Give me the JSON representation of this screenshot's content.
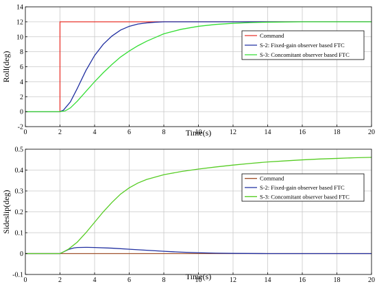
{
  "chart_data": [
    {
      "type": "line",
      "xlabel": "Time(s)",
      "ylabel": "Roll(deg)",
      "xlim": [
        0,
        20
      ],
      "ylim": [
        -2,
        14
      ],
      "xticks": [
        "0",
        "2",
        "4",
        "6",
        "8",
        "10",
        "12",
        "14",
        "16",
        "18",
        "20"
      ],
      "yticks": [
        "-2",
        "0",
        "2",
        "4",
        "6",
        "8",
        "10",
        "12",
        "14"
      ],
      "grid": true,
      "legend_position": "right",
      "series": [
        {
          "name": "Command",
          "color": "#e8332b",
          "x": [
            0,
            2,
            2,
            20
          ],
          "y": [
            0,
            0,
            12,
            12
          ]
        },
        {
          "name": "S-2: Fixed-gain observer based FTC",
          "color": "#1f2ea0",
          "x": [
            0,
            2,
            2.2,
            2.6,
            3,
            3.5,
            4,
            4.5,
            5,
            5.5,
            6,
            6.5,
            7,
            7.5,
            8,
            9,
            10,
            12,
            14,
            16,
            18,
            20
          ],
          "y": [
            0,
            0,
            0.2,
            1.3,
            3.1,
            5.5,
            7.5,
            9.0,
            10.1,
            10.9,
            11.4,
            11.7,
            11.85,
            11.95,
            12.0,
            12.0,
            12.0,
            12.0,
            12.0,
            12.0,
            12.0,
            12.0
          ]
        },
        {
          "name": "S-3: Concomitant observer based FTC",
          "color": "#33dd33",
          "x": [
            0,
            2,
            2.3,
            2.6,
            3,
            3.5,
            4,
            4.5,
            5,
            5.5,
            6,
            6.5,
            7,
            7.5,
            8,
            9,
            10,
            11,
            12,
            13,
            14,
            16,
            18,
            20
          ],
          "y": [
            0,
            0,
            0.1,
            0.5,
            1.4,
            2.7,
            4.0,
            5.2,
            6.3,
            7.3,
            8.1,
            8.8,
            9.4,
            9.9,
            10.4,
            11.0,
            11.4,
            11.65,
            11.8,
            11.9,
            11.95,
            12.0,
            12.0,
            12.0
          ]
        }
      ]
    },
    {
      "type": "line",
      "xlabel": "Time(s)",
      "ylabel": "Sideslip(deg)",
      "xlim": [
        0,
        20
      ],
      "ylim": [
        -0.1,
        0.5
      ],
      "xticks": [
        "0",
        "2",
        "4",
        "6",
        "8",
        "10",
        "12",
        "14",
        "16",
        "18",
        "20"
      ],
      "yticks": [
        "-0.1",
        "0",
        "0.1",
        "0.2",
        "0.3",
        "0.4",
        "0.5"
      ],
      "grid": true,
      "legend_position": "right",
      "series": [
        {
          "name": "Command",
          "color": "#a0522d",
          "x": [
            0,
            20
          ],
          "y": [
            0,
            0
          ]
        },
        {
          "name": "S-2: Fixed-gain observer based FTC",
          "color": "#1f2ea0",
          "x": [
            0,
            2,
            2.2,
            2.5,
            2.8,
            3,
            3.5,
            4,
            5,
            6,
            7,
            8,
            9,
            10,
            11,
            12,
            14,
            16,
            18,
            20
          ],
          "y": [
            0,
            0,
            0.008,
            0.02,
            0.027,
            0.029,
            0.03,
            0.029,
            0.026,
            0.021,
            0.016,
            0.011,
            0.007,
            0.004,
            0.002,
            0.001,
            0.0,
            0.0,
            0.0,
            0.0
          ]
        },
        {
          "name": "S-3: Concomitant observer based FTC",
          "color": "#55cc22",
          "x": [
            0,
            2,
            2.2,
            2.5,
            3,
            3.5,
            4,
            4.5,
            5,
            5.5,
            6,
            6.5,
            7,
            8,
            9,
            10,
            11,
            12,
            13,
            14,
            15,
            16,
            17,
            18,
            19,
            20
          ],
          "y": [
            0,
            0,
            0.008,
            0.022,
            0.055,
            0.1,
            0.15,
            0.2,
            0.245,
            0.285,
            0.315,
            0.338,
            0.355,
            0.378,
            0.393,
            0.405,
            0.415,
            0.424,
            0.432,
            0.439,
            0.444,
            0.449,
            0.453,
            0.456,
            0.459,
            0.461
          ]
        }
      ]
    }
  ]
}
